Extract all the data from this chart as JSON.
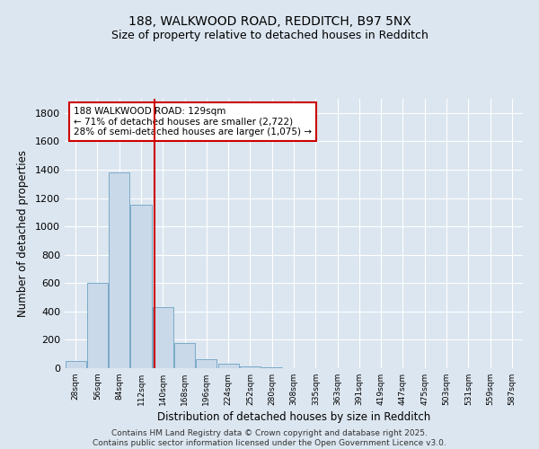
{
  "title_line1": "188, WALKWOOD ROAD, REDDITCH, B97 5NX",
  "title_line2": "Size of property relative to detached houses in Redditch",
  "xlabel": "Distribution of detached houses by size in Redditch",
  "ylabel": "Number of detached properties",
  "categories": [
    "28sqm",
    "56sqm",
    "84sqm",
    "112sqm",
    "140sqm",
    "168sqm",
    "196sqm",
    "224sqm",
    "252sqm",
    "280sqm",
    "308sqm",
    "335sqm",
    "363sqm",
    "391sqm",
    "419sqm",
    "447sqm",
    "475sqm",
    "503sqm",
    "531sqm",
    "559sqm",
    "587sqm"
  ],
  "values": [
    50,
    600,
    1380,
    1150,
    430,
    180,
    65,
    30,
    10,
    5,
    0,
    0,
    0,
    0,
    0,
    0,
    0,
    0,
    0,
    0,
    0
  ],
  "bar_color": "#cad9e9",
  "bar_edge_color": "#7aaac8",
  "vline_color": "#cc0000",
  "annotation_text": "188 WALKWOOD ROAD: 129sqm\n← 71% of detached houses are smaller (2,722)\n28% of semi-detached houses are larger (1,075) →",
  "annotation_box_color": "#ffffff",
  "annotation_box_edge": "#cc0000",
  "ylim": [
    0,
    1900
  ],
  "yticks": [
    0,
    200,
    400,
    600,
    800,
    1000,
    1200,
    1400,
    1600,
    1800
  ],
  "footer_line1": "Contains HM Land Registry data © Crown copyright and database right 2025.",
  "footer_line2": "Contains public sector information licensed under the Open Government Licence v3.0.",
  "background_color": "#dce6f0",
  "plot_background": "#dce6f0",
  "grid_color": "#ffffff"
}
